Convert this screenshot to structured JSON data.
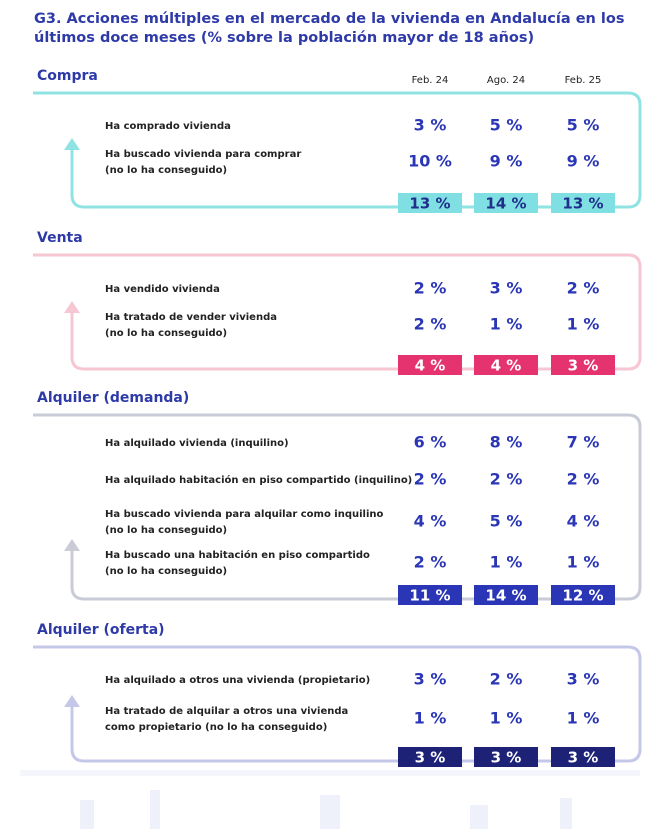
{
  "title": "G3. Acciones múltiples en el mercado de la vivienda en Andalucía en los últimos doce meses (% sobre la población mayor de 18 años)",
  "columns": [
    "Feb. 24",
    "Ago. 24",
    "Feb. 25"
  ],
  "sections": [
    {
      "name": "Compra",
      "rows": [
        {
          "label": [
            "Ha comprado vivienda"
          ],
          "values": [
            "3 %",
            "5 %",
            "5 %"
          ]
        },
        {
          "label": [
            "Ha buscado vivienda para comprar",
            "(no lo ha conseguido)"
          ],
          "values": [
            "10 %",
            "9 %",
            "9 %"
          ]
        }
      ],
      "totals": [
        "13 %",
        "14 %",
        "13 %"
      ]
    },
    {
      "name": "Venta",
      "rows": [
        {
          "label": [
            "Ha vendido vivienda"
          ],
          "values": [
            "2 %",
            "3 %",
            "2 %"
          ]
        },
        {
          "label": [
            "Ha tratado de vender vivienda",
            "(no lo ha conseguido)"
          ],
          "values": [
            "2 %",
            "1 %",
            "1 %"
          ]
        }
      ],
      "totals": [
        "4 %",
        "4 %",
        "3 %"
      ]
    },
    {
      "name": "Alquiler (demanda)",
      "rows": [
        {
          "label": [
            "Ha alquilado vivienda (inquilino)"
          ],
          "values": [
            "6 %",
            "8 %",
            "7 %"
          ]
        },
        {
          "label": [
            "Ha alquilado habitación en piso compartido (inquilino)"
          ],
          "values": [
            "2 %",
            "2 %",
            "2 %"
          ]
        },
        {
          "label": [
            "Ha buscado vivienda para alquilar como inquilino",
            "(no lo ha conseguido)"
          ],
          "values": [
            "4 %",
            "5 %",
            "4 %"
          ]
        },
        {
          "label": [
            "Ha buscado una habitación en piso compartido",
            "(no lo ha conseguido)"
          ],
          "values": [
            "2 %",
            "1 %",
            "1 %"
          ]
        }
      ],
      "totals": [
        "11 %",
        "14 %",
        "12 %"
      ]
    },
    {
      "name": "Alquiler (oferta)",
      "rows": [
        {
          "label": [
            "Ha alquilado a otros una vivienda (propietario)"
          ],
          "values": [
            "3 %",
            "2 %",
            "3 %"
          ]
        },
        {
          "label": [
            "Ha tratado de alquilar a otros una vivienda",
            "como propietario (no lo ha conseguido)"
          ],
          "values": [
            "1 %",
            "1 %",
            "1 %"
          ]
        }
      ],
      "totals": [
        "3 %",
        "3 %",
        "3 %"
      ]
    }
  ]
}
